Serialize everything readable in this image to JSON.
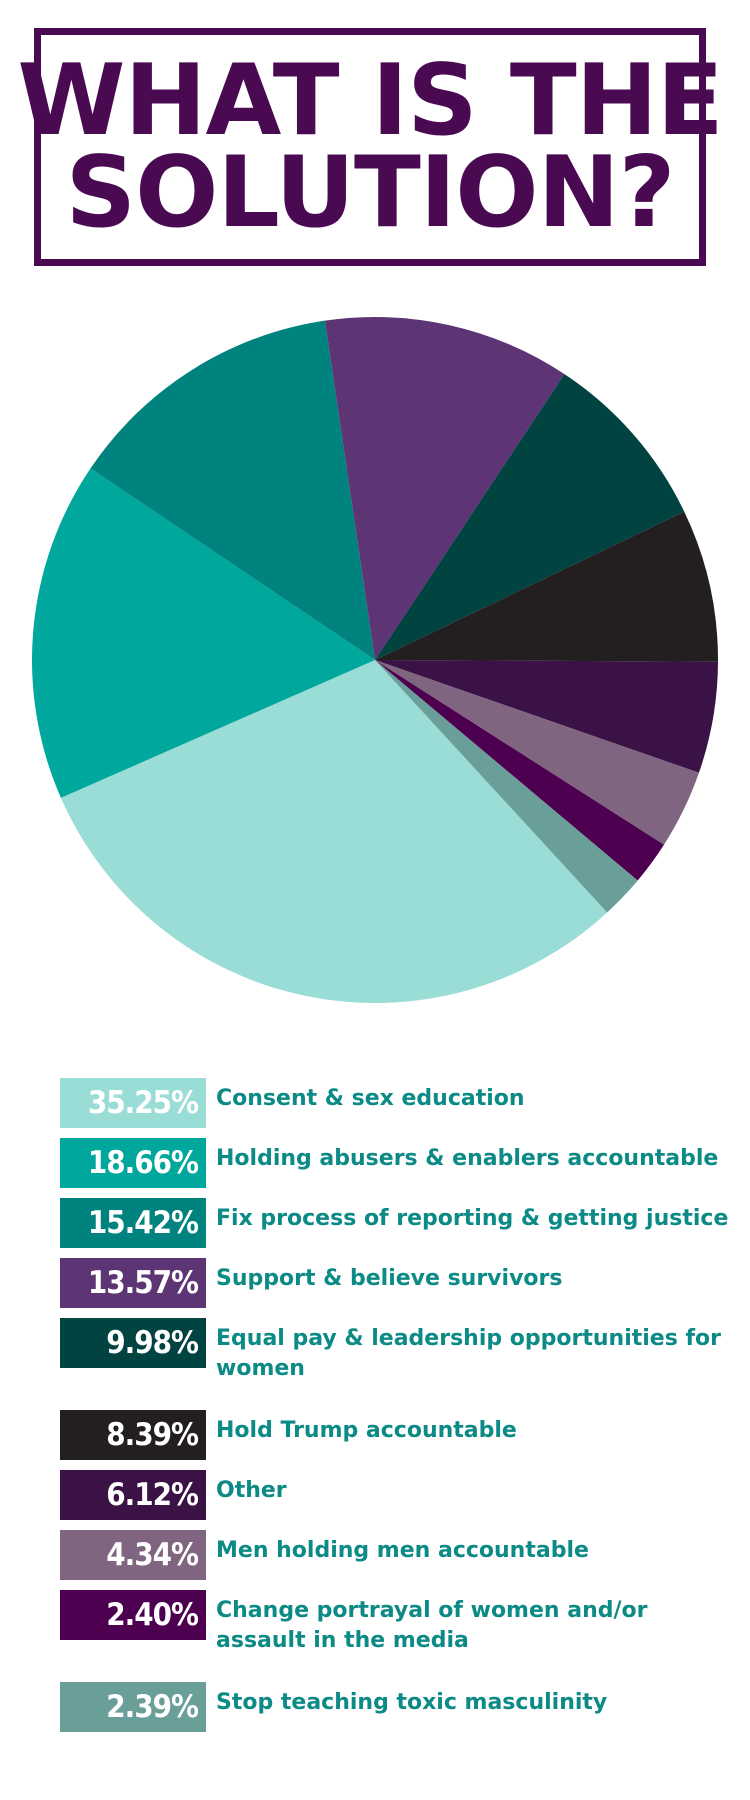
{
  "title": {
    "line1": "WHAT IS THE",
    "line2": "SOLUTION?"
  },
  "chart_data": {
    "type": "pie",
    "title": "WHAT IS THE SOLUTION?",
    "slices": [
      {
        "value": 35.25,
        "value_label": "35.25%",
        "label": "Consent & sex education",
        "color": "#9adcd6"
      },
      {
        "value": 18.66,
        "value_label": "18.66%",
        "label": "Holding abusers & enablers accountable",
        "color": "#00a79d"
      },
      {
        "value": 15.42,
        "value_label": "15.42%",
        "label": "Fix process of reporting & getting justice",
        "color": "#00827e"
      },
      {
        "value": 13.57,
        "value_label": "13.57%",
        "label": "Support & believe survivors",
        "color": "#5e3574"
      },
      {
        "value": 9.98,
        "value_label": "9.98%",
        "label": "Equal pay & leadership opportunities for women",
        "color": "#004341"
      },
      {
        "value": 8.39,
        "value_label": "8.39%",
        "label": "Hold Trump accountable",
        "color": "#231f20"
      },
      {
        "value": 6.12,
        "value_label": "6.12%",
        "label": "Other",
        "color": "#3b1245"
      },
      {
        "value": 4.34,
        "value_label": "4.34%",
        "label": "Men holding men accountable",
        "color": "#806581"
      },
      {
        "value": 2.4,
        "value_label": "2.40%",
        "label": "Change portrayal of women and/or assault in the media",
        "color": "#4d0050"
      },
      {
        "value": 2.39,
        "value_label": "2.39%",
        "label": "Stop teaching toxic masculinity",
        "color": "#6a9e99"
      }
    ],
    "legend_placement": "bottom"
  }
}
